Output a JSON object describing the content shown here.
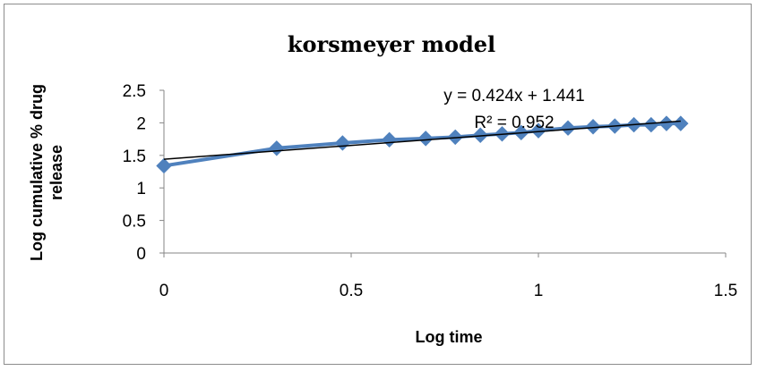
{
  "chart_data": {
    "type": "scatter",
    "title": "korsmeyer model",
    "xlabel": "Log time",
    "ylabel_lines": [
      "Log cumulative % drug",
      "release"
    ],
    "xlim": [
      0,
      1.5
    ],
    "ylim": [
      0,
      2.5
    ],
    "x_ticks": [
      "0",
      "0.5",
      "1",
      "1.5"
    ],
    "y_ticks": [
      "0",
      "0.5",
      "1",
      "1.5",
      "2",
      "2.5"
    ],
    "grid": false,
    "legend": "none",
    "series": [
      {
        "color": "#4f81bd",
        "marker": "diamond",
        "line": true,
        "points": [
          {
            "x": 0,
            "y": 1.34
          },
          {
            "x": 0.301,
            "y": 1.61
          },
          {
            "x": 0.477,
            "y": 1.69
          },
          {
            "x": 0.602,
            "y": 1.74
          },
          {
            "x": 0.699,
            "y": 1.76
          },
          {
            "x": 0.778,
            "y": 1.78
          },
          {
            "x": 0.845,
            "y": 1.81
          },
          {
            "x": 0.903,
            "y": 1.83
          },
          {
            "x": 0.954,
            "y": 1.85
          },
          {
            "x": 1.0,
            "y": 1.88
          },
          {
            "x": 1.079,
            "y": 1.92
          },
          {
            "x": 1.146,
            "y": 1.94
          },
          {
            "x": 1.204,
            "y": 1.95
          },
          {
            "x": 1.255,
            "y": 1.97
          },
          {
            "x": 1.301,
            "y": 1.97
          },
          {
            "x": 1.342,
            "y": 1.99
          },
          {
            "x": 1.38,
            "y": 1.99
          }
        ]
      }
    ],
    "trendline": {
      "type": "linear",
      "slope": 0.424,
      "intercept": 1.441,
      "x_range": [
        0,
        1.38
      ],
      "color": "#000000",
      "equation_label": "y = 0.424x + 1.441",
      "r2_label": "R² = 0.952"
    }
  }
}
